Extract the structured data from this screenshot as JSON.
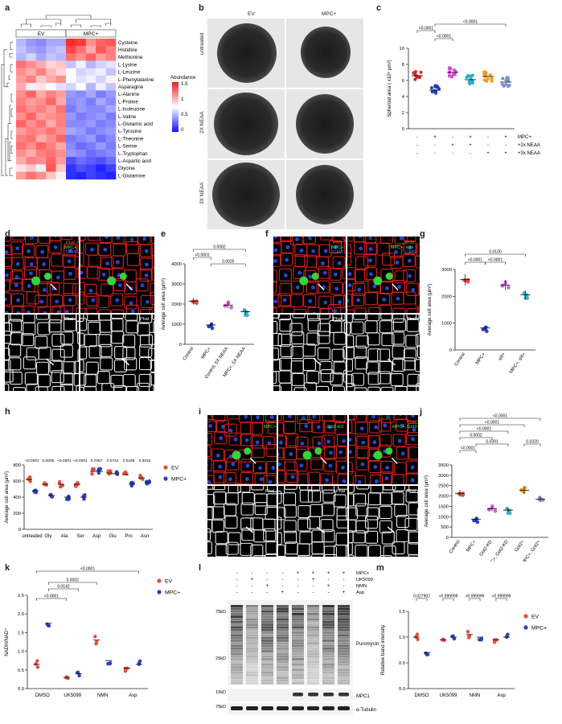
{
  "panels": {
    "a": {
      "label": "a",
      "groups": [
        "EV",
        "MPC+"
      ],
      "rows": [
        "Cysteine",
        "Histidine",
        "Methionine",
        "L-Lysine",
        "L-Leucine",
        "L-Phenylalanine",
        "Asparagine",
        "L-Alanine",
        "L-Proline",
        "L-Isoleucine",
        "L-Valine",
        "L-Glutamic acid",
        "L-Tyrosine",
        "L-Theonine",
        "L-Serine",
        "L-Tryptophan",
        "L-Aspartic acid",
        "Glycine",
        "L-Glutamine"
      ],
      "legend_title": "Abundance",
      "legend_ticks": [
        "1.5",
        "1",
        "0.5",
        "0"
      ],
      "matrix": [
        [
          0.55,
          0.45,
          0.4,
          0.5,
          0.5,
          1.55,
          1.5,
          1.2,
          1.35,
          1.4
        ],
        [
          0.6,
          0.5,
          0.45,
          0.55,
          0.6,
          1.45,
          1.3,
          1.1,
          1.4,
          1.25
        ],
        [
          0.55,
          0.65,
          0.5,
          0.6,
          0.55,
          1.3,
          1.2,
          1.35,
          1.15,
          1.25
        ],
        [
          1.3,
          1.2,
          1.1,
          0.95,
          1.0,
          0.6,
          0.75,
          0.55,
          0.65,
          0.7
        ],
        [
          1.2,
          1.1,
          1.25,
          1.05,
          0.95,
          0.8,
          0.65,
          0.7,
          0.75,
          0.6
        ],
        [
          1.15,
          1.25,
          1.0,
          1.1,
          1.2,
          0.8,
          0.7,
          0.75,
          0.65,
          0.85
        ],
        [
          1.1,
          0.75,
          0.9,
          0.8,
          0.7,
          0.65,
          0.8,
          0.55,
          0.75,
          0.6
        ],
        [
          1.2,
          1.35,
          1.1,
          1.25,
          1.15,
          0.45,
          0.4,
          0.5,
          0.35,
          0.45
        ],
        [
          1.25,
          1.15,
          1.2,
          1.35,
          1.1,
          0.4,
          0.45,
          0.35,
          0.5,
          0.4
        ],
        [
          1.3,
          1.2,
          1.25,
          1.15,
          1.3,
          0.35,
          0.45,
          0.4,
          0.4,
          0.5
        ],
        [
          1.2,
          1.35,
          1.15,
          1.2,
          1.25,
          0.45,
          0.35,
          0.4,
          0.45,
          0.35
        ],
        [
          1.35,
          1.2,
          1.3,
          1.1,
          1.25,
          0.4,
          0.4,
          0.45,
          0.35,
          0.4
        ],
        [
          1.15,
          1.25,
          1.2,
          1.3,
          1.2,
          0.5,
          0.45,
          0.35,
          0.4,
          0.45
        ],
        [
          1.25,
          1.3,
          1.1,
          1.2,
          1.35,
          0.35,
          0.4,
          0.45,
          0.3,
          0.4
        ],
        [
          1.3,
          1.2,
          1.35,
          1.25,
          1.1,
          0.4,
          0.3,
          0.35,
          0.45,
          0.35
        ],
        [
          1.2,
          1.1,
          1.25,
          1.3,
          1.2,
          0.45,
          0.4,
          0.3,
          0.35,
          0.4
        ],
        [
          1.1,
          1.25,
          1.2,
          1.35,
          1.15,
          0.2,
          0.3,
          0.25,
          0.2,
          0.3
        ],
        [
          0.9,
          1.0,
          0.75,
          1.4,
          1.0,
          0.1,
          0.2,
          0.15,
          0.05,
          0.15
        ],
        [
          1.15,
          1.3,
          1.2,
          1.0,
          0.85,
          0.1,
          0.05,
          0.15,
          0.1,
          0.05
        ]
      ]
    },
    "b": {
      "label": "b",
      "cols": [
        "EV",
        "MPC+"
      ],
      "rows": [
        "untreated",
        "2X NEAA",
        "3X NEAA"
      ]
    },
    "c": {
      "label": "c",
      "ylabel": "Spheroid area ( x10⁵ μm²)",
      "pvals": [
        "<0.0001",
        "<0.0001",
        "<0.0001"
      ],
      "condition_labels": [
        "MPC+",
        "+2x NEAA",
        "+3x NEAA"
      ],
      "condition_rows": [
        [
          "-",
          "+",
          "-",
          "+",
          "-",
          "+"
        ],
        [
          "-",
          "-",
          "+",
          "+",
          "-",
          "-"
        ],
        [
          "-",
          "-",
          "-",
          "-",
          "+",
          "+"
        ]
      ],
      "colors": [
        "#d62728",
        "#1f3fbf",
        "#e040e0",
        "#21b0c8",
        "#f39c12",
        "#7b8fd8"
      ],
      "chart_data": {
        "type": "scatter",
        "ylim": [
          0,
          10
        ],
        "yticks": [
          "0",
          "2",
          "4",
          "6",
          "8",
          "10"
        ],
        "means": [
          6.6,
          4.8,
          7.0,
          6.1,
          6.5,
          5.8
        ]
      }
    },
    "d": {
      "label": "d",
      "titles": [
        "MPC+",
        "MPC+, 5X NEAA"
      ],
      "stains": [
        "Phal",
        "MPC+",
        "DAPI"
      ],
      "bottom_stain": "Phal"
    },
    "e": {
      "label": "e",
      "ylabel": "Average cell area (μm²)",
      "categories": [
        "Control",
        "MPC+",
        "Control, 5X NEAA",
        "MPC+, 5X NEAA"
      ],
      "pvals": [
        "0.0082",
        "<0.0001",
        "0.0025"
      ],
      "colors": [
        "#e74c3c",
        "#2b3fbf",
        "#d65fd6",
        "#38b6c8"
      ],
      "chart_data": {
        "type": "scatter",
        "ylim": [
          0,
          4000
        ],
        "yticks": [
          "0",
          "1000",
          "2000",
          "3000",
          "4000"
        ],
        "means": [
          2150,
          960,
          1950,
          1620
        ]
      }
    },
    "f": {
      "label": "f",
      "titles": [
        "MPC+",
        "MPC+, slif+"
      ],
      "stains": [
        "Phal",
        "MPC+",
        "DAPI"
      ],
      "stains2": [
        "Phal",
        "MPC+, slif+",
        "DAPI"
      ],
      "bottom_stain": "Phal"
    },
    "g": {
      "label": "g",
      "ylabel": "Average cell area (μm²)",
      "categories": [
        "Control",
        "MPC+",
        "slif+",
        "MPC+, slif+"
      ],
      "pvals": [
        "0.0100",
        "<0.0001",
        "<0.0001"
      ],
      "colors": [
        "#e74c3c",
        "#2b3fbf",
        "#d65fd6",
        "#38b6c8"
      ],
      "chart_data": {
        "type": "scatter",
        "ylim": [
          0,
          3000
        ],
        "yticks": [
          "0",
          "1000",
          "2000",
          "3000"
        ],
        "means": [
          2620,
          820,
          2420,
          2060
        ]
      }
    },
    "h": {
      "label": "h",
      "ylabel": "Average cell area (μm²)",
      "categories": [
        "untreated",
        "Gly",
        "Ala",
        "Ser",
        "Asp",
        "Glu",
        "Pro",
        "Asn"
      ],
      "pvals": [
        "<0.0001",
        "0.0005",
        "<0.0001",
        "<0.0001",
        "0.7057",
        "0.0742",
        "0.0189",
        "0.3015"
      ],
      "legend": [
        "EV",
        "MPC+"
      ],
      "colors": [
        "#e74c3c",
        "#2b3fbf"
      ],
      "chart_data": {
        "type": "scatter",
        "ylim": [
          0,
          800
        ],
        "yticks": [
          "0",
          "200",
          "400",
          "600",
          "800"
        ],
        "series": [
          {
            "name": "EV",
            "values": [
              620,
              560,
              560,
              560,
              720,
              700,
              680,
              640
            ]
          },
          {
            "name": "MPC+",
            "values": [
              480,
              420,
              400,
              400,
              720,
              690,
              560,
              580
            ]
          }
        ]
      }
    },
    "i": {
      "label": "i",
      "titles": [
        "MPC+",
        "Got2-KD",
        "MPC+, Got2+"
      ],
      "stains1": [
        "Phal",
        "MPC+"
      ],
      "stains2": [
        "Phal",
        "Got2-KD"
      ],
      "stains3": [
        "Phal",
        "MPC+, Got2+"
      ],
      "bottom_stain": "Phal"
    },
    "j": {
      "label": "j",
      "ylabel": "Average cell area (μm²)",
      "categories": [
        "Control",
        "MPC+",
        "Got2-KD",
        "MPC+, Got2-KD",
        "Got2+",
        "MPC+, Got2+"
      ],
      "pvals": [
        "<0.0001",
        "<0.0001",
        "<0.0001",
        "0.0002",
        "0.0391",
        "0.0320",
        "<0.0001"
      ],
      "colors": [
        "#e74c3c",
        "#2b3fbf",
        "#d65fd6",
        "#38b6c8",
        "#f39c12",
        "#8e9bd8"
      ],
      "chart_data": {
        "type": "scatter",
        "ylim": [
          0,
          3500
        ],
        "yticks": [
          "0",
          "500",
          "1000",
          "1500",
          "2000",
          "2500",
          "3000",
          "3500"
        ],
        "means": [
          2130,
          880,
          1380,
          1320,
          2280,
          1840
        ]
      }
    },
    "k": {
      "label": "k",
      "ylabel": "NADH/NAD⁺",
      "categories": [
        "DMSO",
        "UK5099",
        "NMN",
        "Asp"
      ],
      "pvals": [
        "<0.0001",
        "0.0142",
        "0.0002",
        "<0.0001"
      ],
      "legend": [
        "EV",
        "MPC+"
      ],
      "colors": [
        "#e74c3c",
        "#2b3fbf"
      ],
      "chart_data": {
        "type": "scatter",
        "ylim": [
          0,
          2.5
        ],
        "yticks": [
          "0.0",
          "0.5",
          "1.0",
          "1.5",
          "2.0",
          "2.5"
        ],
        "series": [
          {
            "name": "EV",
            "values": [
              0.65,
              0.3,
              1.3,
              0.55
            ]
          },
          {
            "name": "MPC+",
            "values": [
              1.75,
              0.4,
              0.75,
              0.65
            ]
          }
        ]
      }
    },
    "l": {
      "label": "l",
      "row_labels": [
        "MPC+",
        "UK5099",
        "NMN",
        "Asp"
      ],
      "rows": [
        [
          "-",
          "-",
          "-",
          "-",
          "+",
          "+",
          "+",
          "+"
        ],
        [
          "-",
          "+",
          "-",
          "-",
          "-",
          "+",
          "-",
          "-"
        ],
        [
          "-",
          "-",
          "+",
          "-",
          "-",
          "-",
          "+",
          "-"
        ],
        [
          "-",
          "-",
          "-",
          "+",
          "-",
          "-",
          "-",
          "+"
        ]
      ],
      "mw": [
        "75kD",
        "25kD",
        "15kD",
        "75kD"
      ],
      "bands": [
        "Puromycin",
        "MPC1",
        "α-Tubulin"
      ]
    },
    "m": {
      "label": "m",
      "ylabel": "Relative band intensity",
      "categories": [
        "DMSO",
        "UK5099",
        "NMN",
        "Asp"
      ],
      "pvals": [
        "0.027902",
        ">0.999999",
        ">0.999999",
        ">0.999999"
      ],
      "legend": [
        "EV",
        "MPC+"
      ],
      "colors": [
        "#e74c3c",
        "#2b3fbf"
      ],
      "chart_data": {
        "type": "scatter",
        "ylim": [
          0,
          1.5
        ],
        "yticks": [
          "0.0",
          "0.5",
          "1.0",
          "1.5"
        ],
        "series": [
          {
            "name": "EV",
            "values": [
              1.0,
              0.95,
              1.05,
              0.95
            ]
          },
          {
            "name": "MPC+",
            "values": [
              0.7,
              1.0,
              1.0,
              1.0
            ]
          }
        ]
      }
    }
  }
}
